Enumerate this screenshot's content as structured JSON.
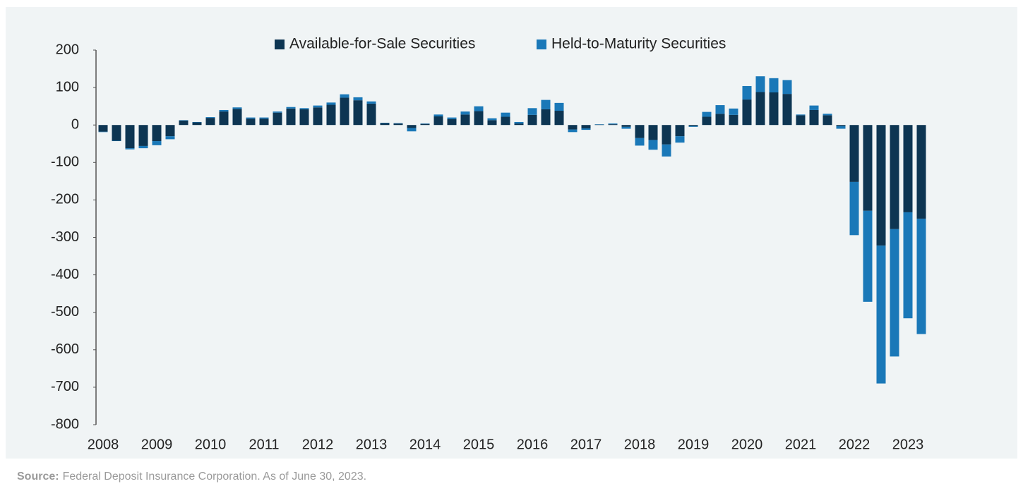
{
  "chart_data": {
    "type": "stacked-bar",
    "categories": [
      "2008",
      null,
      null,
      null,
      "2009",
      null,
      null,
      null,
      "2010",
      null,
      null,
      null,
      "2011",
      null,
      null,
      null,
      "2012",
      null,
      null,
      null,
      "2013",
      null,
      null,
      null,
      "2014",
      null,
      null,
      null,
      "2015",
      null,
      null,
      null,
      "2016",
      null,
      null,
      null,
      "2017",
      null,
      null,
      null,
      "2018",
      null,
      null,
      null,
      "2019",
      null,
      null,
      null,
      "2020",
      null,
      null,
      null,
      "2021",
      null,
      null,
      null,
      "2022",
      null,
      null,
      null,
      "2023",
      null
    ],
    "series": [
      {
        "name": "Available-for-Sale Securities",
        "color": "#0d3552",
        "values": [
          -18,
          -42,
          -62,
          -56,
          -43,
          -30,
          12,
          7,
          19,
          36,
          43,
          17,
          17,
          33,
          44,
          42,
          47,
          54,
          73,
          66,
          57,
          5,
          4,
          -8,
          3,
          23,
          16,
          28,
          37,
          13,
          22,
          4,
          27,
          42,
          38,
          -12,
          -9,
          1,
          2,
          -5,
          -35,
          -40,
          -52,
          -30,
          -3,
          22,
          30,
          27,
          68,
          88,
          87,
          83,
          26,
          40,
          26,
          -3,
          -152,
          -229,
          -322,
          -278,
          -233,
          -250
        ]
      },
      {
        "name": "Held-to-Maturity Securities",
        "color": "#1a78b8",
        "values": [
          -1,
          -1,
          -3,
          -6,
          -11,
          -8,
          1,
          1,
          2,
          4,
          4,
          3,
          3,
          3,
          4,
          3,
          5,
          6,
          9,
          8,
          6,
          1,
          1,
          -9,
          1,
          5,
          4,
          8,
          13,
          5,
          11,
          4,
          18,
          25,
          21,
          -7,
          -4,
          1,
          2,
          -5,
          -20,
          -26,
          -32,
          -17,
          -2,
          13,
          23,
          17,
          36,
          42,
          38,
          37,
          2,
          12,
          4,
          -7,
          -142,
          -243,
          -368,
          -340,
          -283,
          -308
        ]
      }
    ],
    "ylim": [
      -800,
      200
    ],
    "yticks": [
      200,
      100,
      0,
      -100,
      -200,
      -300,
      -400,
      -500,
      -600,
      -700,
      -800
    ],
    "legend": "top",
    "source_label": "Source:",
    "source_text": "Federal Deposit Insurance Corporation. As of June 30, 2023."
  }
}
